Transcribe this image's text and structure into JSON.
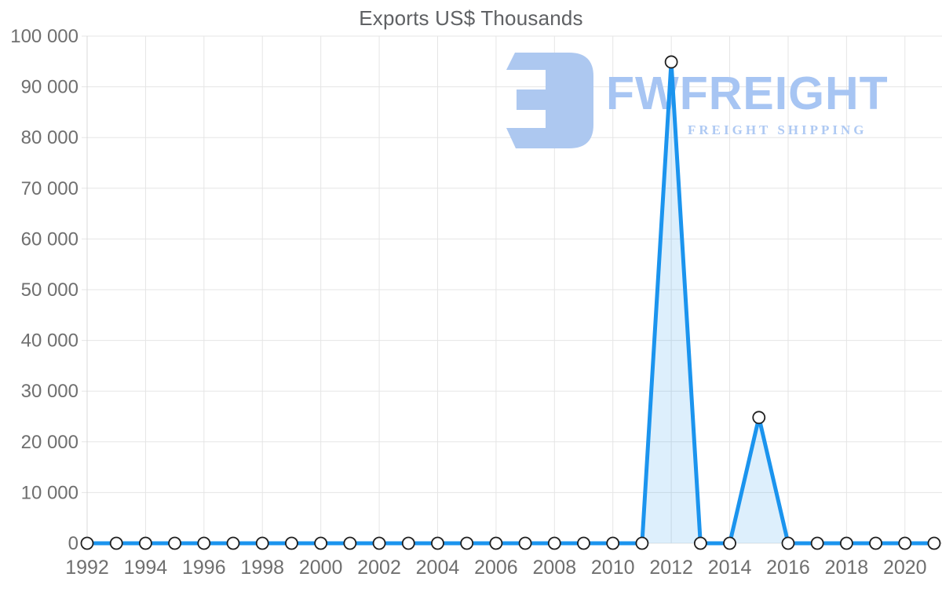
{
  "title": "Exports US$ Thousands",
  "watermark": {
    "brand": "FWFREIGHT",
    "tagline": "FREIGHT SHIPPING",
    "logo_icon": "fwfreight-logo",
    "brand_color": "#a7c5f3",
    "logo_color": "#adc8f0"
  },
  "chart_data": {
    "type": "area",
    "title": "Exports US$ Thousands",
    "xlabel": "",
    "ylabel": "",
    "legend": "none",
    "grid": true,
    "x": [
      1992,
      1993,
      1994,
      1995,
      1996,
      1997,
      1998,
      1999,
      2000,
      2001,
      2002,
      2003,
      2004,
      2005,
      2006,
      2007,
      2008,
      2009,
      2010,
      2011,
      2012,
      2013,
      2014,
      2015,
      2016,
      2017,
      2018,
      2019,
      2020,
      2021
    ],
    "series": [
      {
        "name": "Exports US$ Thousands",
        "values": [
          0,
          0,
          0,
          0,
          0,
          0,
          0,
          0,
          0,
          0,
          0,
          0,
          0,
          0,
          0,
          0,
          0,
          0,
          0,
          0,
          94900,
          0,
          0,
          24800,
          0,
          0,
          0,
          0,
          0,
          0
        ]
      }
    ],
    "xtick_labels": [
      "1992",
      "1994",
      "1996",
      "1998",
      "2000",
      "2002",
      "2004",
      "2006",
      "2008",
      "2010",
      "2012",
      "2014",
      "2016",
      "2018",
      "2020"
    ],
    "xtick_years": [
      1992,
      1994,
      1996,
      1998,
      2000,
      2002,
      2004,
      2006,
      2008,
      2010,
      2012,
      2014,
      2016,
      2018,
      2020
    ],
    "ytick_values": [
      0,
      10000,
      20000,
      30000,
      40000,
      50000,
      60000,
      70000,
      80000,
      90000,
      100000
    ],
    "ytick_labels": [
      "0",
      "10 000",
      "20 000",
      "30 000",
      "40 000",
      "50 000",
      "60 000",
      "70 000",
      "80 000",
      "90 000",
      "100 000"
    ],
    "ylim": [
      0,
      100000
    ],
    "xlim": [
      1992,
      2021
    ],
    "colors": {
      "line": "#1b94ee",
      "fill": "rgba(27,148,238,0.15)",
      "marker_fill": "#ffffff",
      "marker_stroke": "#1f1f1f",
      "grid": "#e5e5e5",
      "axis": "#d9d9d9",
      "tick_text": "#6f6f6f",
      "title_text": "#5f6164"
    }
  }
}
